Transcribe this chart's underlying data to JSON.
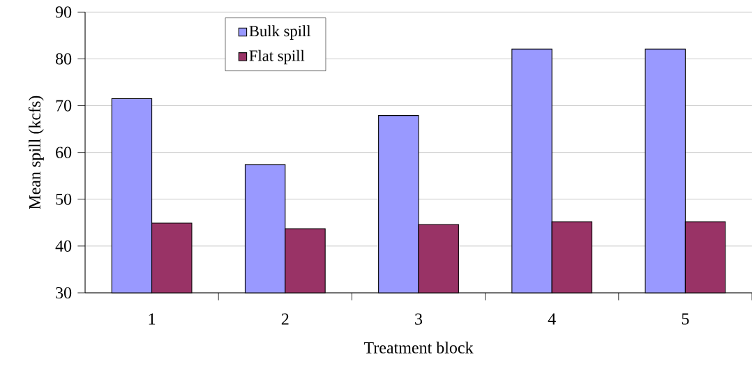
{
  "chart_data": {
    "type": "bar",
    "xlabel": "Treatment block",
    "ylabel": "Mean spill (kcfs)",
    "categories": [
      "1",
      "2",
      "3",
      "4",
      "5"
    ],
    "series": [
      {
        "name": "Bulk spill",
        "color": "#9999ff",
        "values": [
          71.5,
          57.4,
          67.9,
          82.1,
          82.1
        ]
      },
      {
        "name": "Flat spill",
        "color": "#993366",
        "values": [
          44.9,
          43.7,
          44.6,
          45.2,
          45.2
        ]
      }
    ],
    "ylim": [
      30,
      90
    ],
    "yticks": [
      30,
      40,
      50,
      60,
      70,
      80,
      90
    ],
    "grid": "y",
    "legend": "top left"
  }
}
